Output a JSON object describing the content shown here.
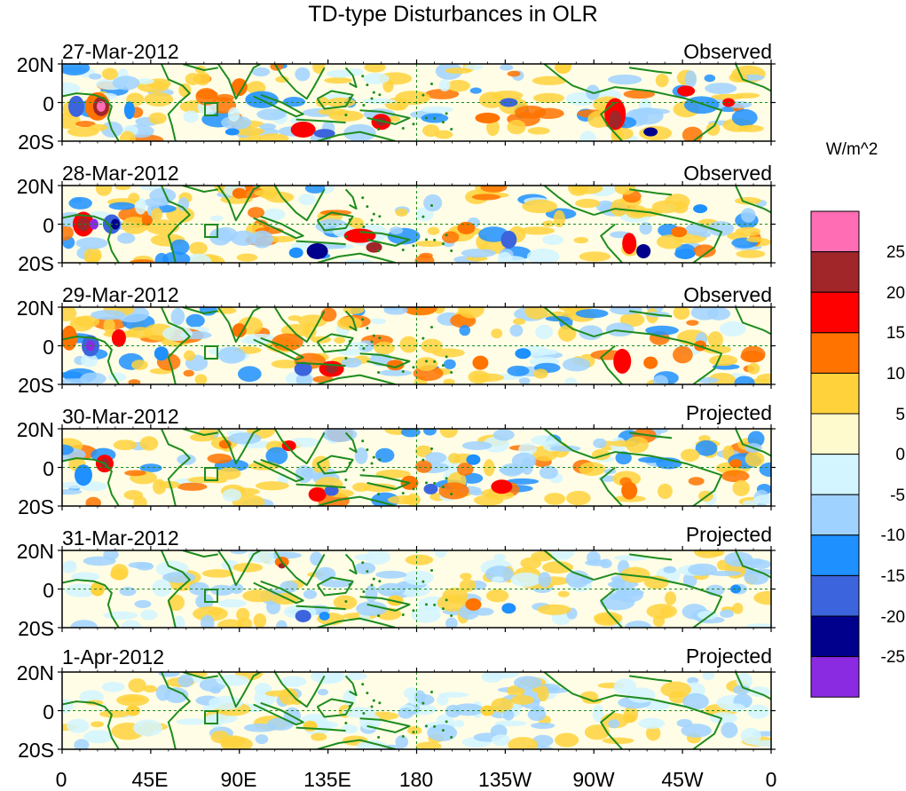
{
  "title": "TD-type Disturbances in OLR",
  "colorbar": {
    "unit": "W/m^2",
    "labels": [
      "25",
      "20",
      "15",
      "10",
      "5",
      "0",
      "-5",
      "-10",
      "-15",
      "-20",
      "-25"
    ],
    "colors": [
      "#ff6eb4",
      "#a0262a",
      "#ff0000",
      "#ff7300",
      "#ffd23c",
      "#fffacd",
      "#d2f5ff",
      "#a0d2ff",
      "#1e90ff",
      "#3c64dc",
      "#00008c",
      "#8a2be2"
    ]
  },
  "panels": [
    {
      "date": "27-Mar-2012",
      "type": "Observed"
    },
    {
      "date": "28-Mar-2012",
      "type": "Observed"
    },
    {
      "date": "29-Mar-2012",
      "type": "Observed"
    },
    {
      "date": "30-Mar-2012",
      "type": "Projected"
    },
    {
      "date": "31-Mar-2012",
      "type": "Projected"
    },
    {
      "date": "1-Apr-2012",
      "type": "Projected"
    }
  ],
  "lat_labels": [
    "20N",
    "0",
    "20S"
  ],
  "lon_labels": [
    "0",
    "45E",
    "90E",
    "135E",
    "180",
    "135W",
    "90W",
    "45W",
    "0"
  ],
  "colors": {
    "coast": "#1e8c1e",
    "text": "#000000"
  }
}
